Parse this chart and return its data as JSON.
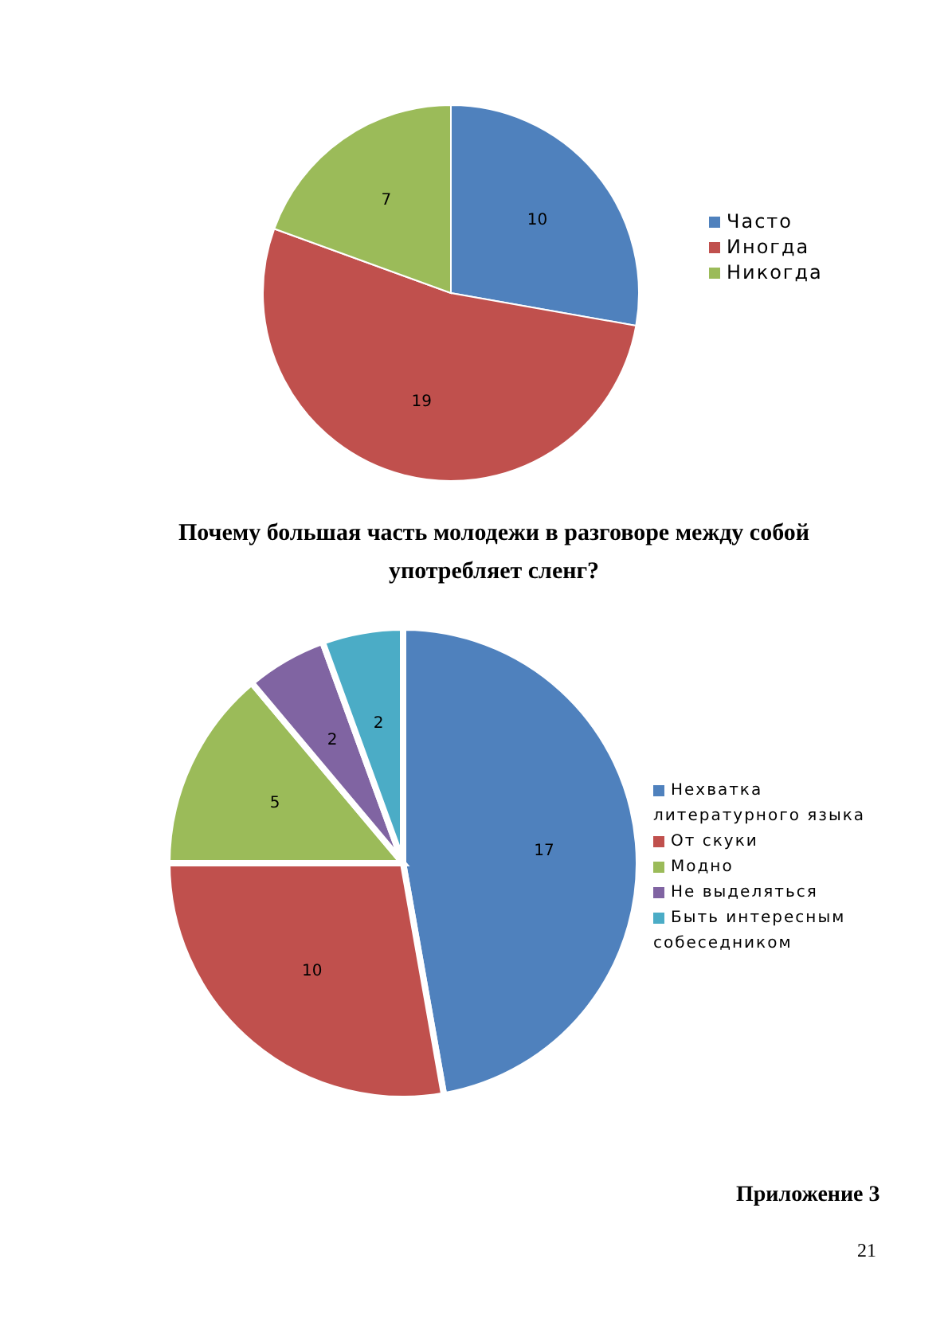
{
  "chart_data": [
    {
      "type": "pie",
      "categories": [
        "Часто",
        "Иногда",
        "Никогда"
      ],
      "values": [
        10,
        19,
        7
      ],
      "colors": [
        "#4f81bd",
        "#c0504d",
        "#9bbb59"
      ],
      "data_labels": true,
      "legend": "right"
    },
    {
      "type": "pie",
      "title": "Почему большая часть молодежи в разговоре между собой употребляет сленг?",
      "categories": [
        "Нехватка литературного языка",
        "От скуки",
        "Модно",
        "Не выделяться",
        "Быть интересным собеседником"
      ],
      "values": [
        17,
        10,
        5,
        2,
        2
      ],
      "colors": [
        "#4f81bd",
        "#c0504d",
        "#9bbb59",
        "#8064a2",
        "#4bacc6"
      ],
      "data_labels": true,
      "legend": "right",
      "annotations": [
        "Приложение 3",
        "21"
      ]
    }
  ]
}
